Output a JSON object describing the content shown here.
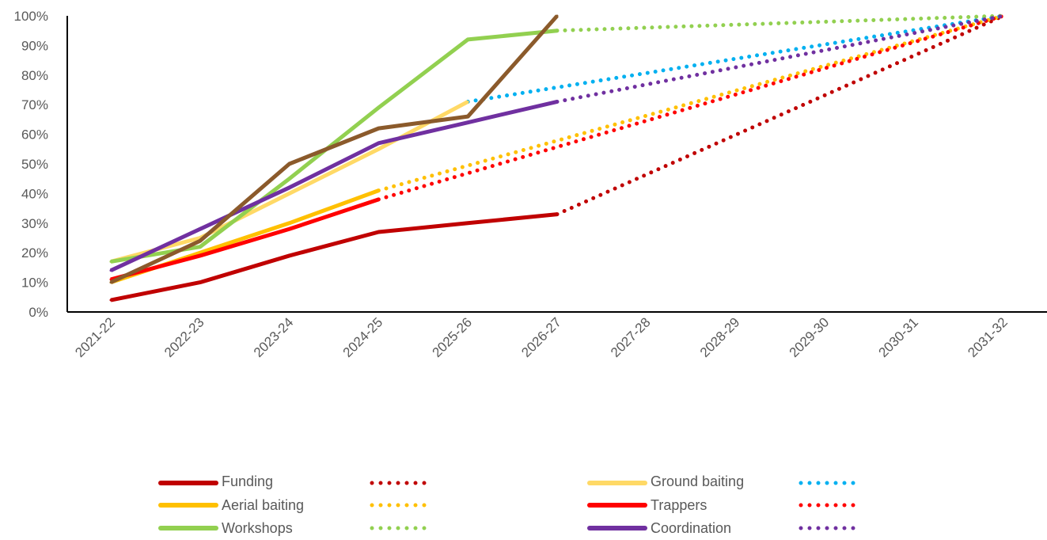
{
  "chart_data": {
    "type": "line",
    "categories": [
      "2021-22",
      "2022-23",
      "2023-24",
      "2024-25",
      "2025-26",
      "2026-27",
      "2027-28",
      "2028-29",
      "2029-30",
      "2030-31",
      "2031-32"
    ],
    "ylim": [
      0,
      100
    ],
    "yticks": [
      "0%",
      "10%",
      "20%",
      "30%",
      "40%",
      "50%",
      "60%",
      "70%",
      "80%",
      "90%",
      "100%"
    ],
    "series": [
      {
        "name": "Funding",
        "color": "#C00000",
        "actual": [
          4,
          10,
          19,
          27,
          30,
          33
        ],
        "projected_from": 5
      },
      {
        "name": "Ground baiting",
        "color": "#FFD966",
        "actual": [
          17,
          25,
          40,
          55,
          71
        ],
        "projected_from": 4,
        "projected_color": "#00B0F0"
      },
      {
        "name": "Aerial baiting",
        "color": "#FFC000",
        "actual": [
          10,
          20,
          30,
          41
        ],
        "projected_from": 3
      },
      {
        "name": "Trappers",
        "color": "#FF0000",
        "actual": [
          11,
          19,
          28,
          38
        ],
        "projected_from": 3
      },
      {
        "name": "Workshops",
        "color": "#92D050",
        "actual": [
          17,
          22,
          45,
          69,
          92,
          95
        ],
        "projected_from": 5
      },
      {
        "name": "Coordination",
        "color": "#7030A0",
        "actual": [
          14,
          28,
          42,
          57,
          64,
          71
        ],
        "projected_from": 5
      },
      {
        "name": "",
        "color": "#8B5A2B",
        "actual": [
          10,
          24,
          50,
          62,
          66,
          100
        ]
      }
    ],
    "end_value": 100,
    "legend": [
      {
        "label": "Funding",
        "solid": "#C00000",
        "dotted": "#C00000"
      },
      {
        "label": "Aerial baiting",
        "solid": "#FFC000",
        "dotted": "#FFC000"
      },
      {
        "label": "Workshops",
        "solid": "#92D050",
        "dotted": "#92D050"
      },
      {
        "label": "Ground baiting",
        "solid": "#FFD966",
        "dotted": "#00B0F0"
      },
      {
        "label": "Trappers",
        "solid": "#FF0000",
        "dotted": "#FF0000"
      },
      {
        "label": "Coordination",
        "solid": "#7030A0",
        "dotted": "#7030A0"
      }
    ]
  }
}
